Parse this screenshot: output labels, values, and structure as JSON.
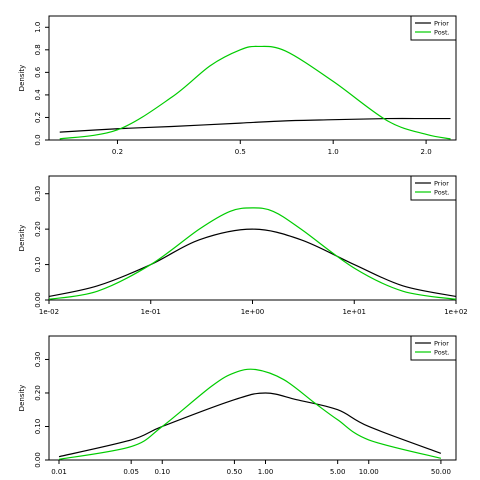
{
  "chart_data": [
    {
      "type": "line",
      "x_scale": "log",
      "xlim": [
        0.12,
        2.5
      ],
      "ylim": [
        0,
        1.1
      ],
      "xticks": [
        0.2,
        0.5,
        1.0,
        2.0
      ],
      "xtick_labels": [
        "0.2",
        "0.5",
        "1.0",
        "2.0"
      ],
      "yticks": [
        0,
        0.2,
        0.4,
        0.6,
        0.8,
        1.0
      ],
      "ytick_labels": [
        "0.0",
        "0.2",
        "0.4",
        "0.6",
        "0.8",
        "1.0"
      ],
      "ylabel": "Density",
      "legend": {
        "position": "top-right"
      },
      "series": [
        {
          "name": "Prior",
          "color": "#000000",
          "x": [
            0.13,
            0.2,
            0.3,
            0.5,
            0.7,
            1.0,
            1.5,
            2.0,
            2.4
          ],
          "y": [
            0.07,
            0.1,
            0.12,
            0.15,
            0.17,
            0.18,
            0.19,
            0.19,
            0.19
          ]
        },
        {
          "name": "Post.",
          "color": "#00cc00",
          "x": [
            0.13,
            0.2,
            0.3,
            0.4,
            0.5,
            0.57,
            0.7,
            1.0,
            1.5,
            2.0,
            2.4
          ],
          "y": [
            0.01,
            0.09,
            0.38,
            0.66,
            0.8,
            0.83,
            0.79,
            0.52,
            0.17,
            0.05,
            0.01
          ]
        }
      ]
    },
    {
      "type": "line",
      "x_scale": "log",
      "xlim": [
        0.01,
        100
      ],
      "ylim": [
        0,
        0.35
      ],
      "xticks": [
        0.01,
        0.1,
        1,
        10,
        100
      ],
      "xtick_labels": [
        "1e-02",
        "1e-01",
        "1e+00",
        "1e+01",
        "1e+02"
      ],
      "yticks": [
        0,
        0.1,
        0.2,
        0.3
      ],
      "ytick_labels": [
        "0.00",
        "0.10",
        "0.20",
        "0.30"
      ],
      "ylabel": "Density",
      "legend": {
        "position": "top-right"
      },
      "series": [
        {
          "name": "Prior",
          "color": "#000000",
          "x": [
            0.01,
            0.03,
            0.1,
            0.3,
            1,
            3,
            10,
            30,
            100
          ],
          "y": [
            0.01,
            0.04,
            0.1,
            0.17,
            0.2,
            0.17,
            0.1,
            0.04,
            0.01
          ]
        },
        {
          "name": "Post.",
          "color": "#00cc00",
          "x": [
            0.01,
            0.03,
            0.1,
            0.3,
            0.6,
            1,
            1.6,
            3,
            10,
            30,
            100
          ],
          "y": [
            0.002,
            0.025,
            0.1,
            0.2,
            0.25,
            0.26,
            0.25,
            0.2,
            0.09,
            0.025,
            0.002
          ]
        }
      ]
    },
    {
      "type": "line",
      "x_scale": "log",
      "xlim": [
        0.008,
        70
      ],
      "ylim": [
        0,
        0.37
      ],
      "xticks": [
        0.01,
        0.05,
        0.1,
        0.5,
        1,
        5,
        10,
        50
      ],
      "xtick_labels": [
        "0.01",
        "0.05",
        "0.10",
        "0.50",
        "1.00",
        "5.00",
        "10.00",
        "50.00"
      ],
      "yticks": [
        0,
        0.1,
        0.2,
        0.3
      ],
      "ytick_labels": [
        "0.00",
        "0.10",
        "0.20",
        "0.30"
      ],
      "ylabel": "Density",
      "legend": {
        "position": "top-right"
      },
      "series": [
        {
          "name": "Prior",
          "color": "#000000",
          "x": [
            0.01,
            0.05,
            0.1,
            0.5,
            1,
            2,
            5,
            10,
            50
          ],
          "y": [
            0.01,
            0.06,
            0.1,
            0.18,
            0.2,
            0.18,
            0.15,
            0.1,
            0.02
          ]
        },
        {
          "name": "Post.",
          "color": "#00cc00",
          "x": [
            0.01,
            0.05,
            0.1,
            0.3,
            0.5,
            0.8,
            1.5,
            3,
            5,
            10,
            50
          ],
          "y": [
            0.002,
            0.04,
            0.1,
            0.22,
            0.26,
            0.27,
            0.24,
            0.17,
            0.12,
            0.06,
            0.005
          ]
        }
      ]
    }
  ]
}
